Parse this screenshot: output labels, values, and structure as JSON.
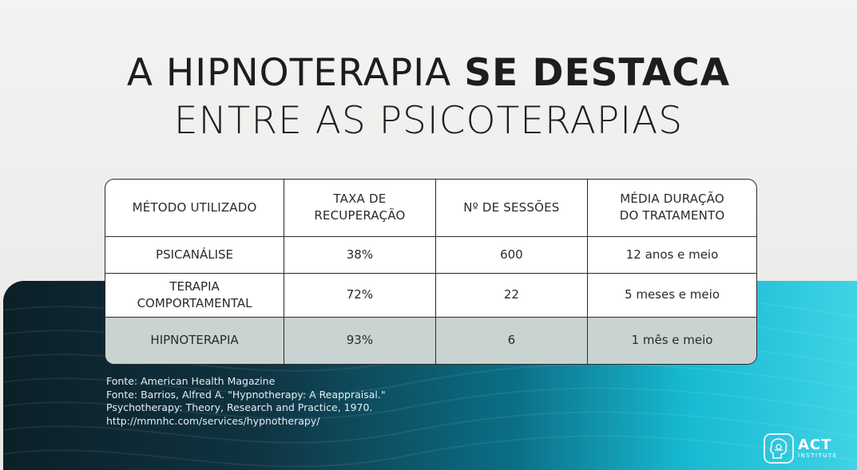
{
  "title": {
    "line1_light": "A HIPNOTERAPIA ",
    "line1_bold": "SE DESTACA",
    "line2": "ENTRE AS PSICOTERAPIAS"
  },
  "table": {
    "headers": [
      "MÉTODO UTILIZADO",
      "TAXA DE RECUPERAÇÃO",
      "Nº DE SESSÕES",
      "MÉDIA DURAÇÃO DO TRATAMENTO"
    ],
    "header_lines": {
      "col2_a": "TAXA DE",
      "col2_b": "RECUPERAÇÃO",
      "col4_a": "MÉDIA DURAÇÃO",
      "col4_b": "DO TRATAMENTO"
    },
    "rows": [
      {
        "method": "PSICANÁLISE",
        "rate": "38%",
        "sessions": "600",
        "duration": "12 anos e meio"
      },
      {
        "method": "TERAPIA COMPORTAMENTAL",
        "method_a": "TERAPIA",
        "method_b": "COMPORTAMENTAL",
        "rate": "72%",
        "sessions": "22",
        "duration": "5 meses e meio"
      },
      {
        "method": "HIPNOTERAPIA",
        "rate": "93%",
        "sessions": "6",
        "duration": "1 mês e meio"
      }
    ],
    "highlight_color": "#c9d3d1"
  },
  "sources": [
    "Fonte: American Health Magazine",
    "Fonte: Barrios, Alfred A. \"Hypnotherapy: A Reappraisal.\"",
    "Psychotherapy: Theory, Research and Practice, 1970.",
    "http://mmnhc.com/services/hypnotherapy/"
  ],
  "logo": {
    "icon": "act-brain-icon",
    "name": "ACT",
    "subtitle": "INSTITUTE"
  },
  "colors": {
    "background": "#efefed",
    "band_dark": "#0c1f27",
    "band_light": "#3fd3e6",
    "text_dark": "#1d1d1d"
  }
}
